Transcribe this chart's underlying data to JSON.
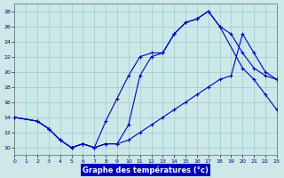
{
  "title": "Graphe des températures (°c)",
  "bg_color": "#cce8e8",
  "grid_color": "#99cccc",
  "line_color": "#0000bb",
  "xlim": [
    0,
    23
  ],
  "ylim": [
    9,
    29
  ],
  "yticks": [
    10,
    12,
    14,
    16,
    18,
    20,
    22,
    24,
    26,
    28
  ],
  "xticks": [
    0,
    1,
    2,
    3,
    4,
    5,
    6,
    7,
    8,
    9,
    10,
    11,
    12,
    13,
    14,
    15,
    16,
    17,
    18,
    19,
    20,
    21,
    22,
    23
  ],
  "curve1_x": [
    0,
    2,
    3,
    4,
    5,
    6,
    7,
    8,
    9,
    10,
    11,
    12,
    13,
    14,
    15,
    16,
    17,
    18,
    19,
    20,
    21,
    22,
    23
  ],
  "curve1_y": [
    14,
    13.5,
    12.5,
    11.0,
    10.0,
    10.5,
    10.0,
    10.5,
    10.5,
    13.0,
    19.5,
    22.0,
    22.5,
    25.0,
    26.5,
    27.0,
    28.0,
    26.0,
    25.0,
    22.5,
    20.5,
    19.5,
    19.0
  ],
  "curve2_x": [
    0,
    2,
    3,
    4,
    5,
    6,
    7,
    8,
    9,
    10,
    11,
    12,
    13,
    14,
    15,
    16,
    17,
    18,
    20,
    21,
    22,
    23
  ],
  "curve2_y": [
    14,
    13.5,
    12.5,
    11.0,
    10.0,
    10.5,
    10.0,
    13.5,
    16.5,
    19.5,
    22.0,
    22.5,
    22.5,
    25.0,
    26.5,
    27.0,
    28.0,
    26.0,
    20.5,
    19.0,
    17.0,
    15.0
  ],
  "curve3_x": [
    0,
    2,
    3,
    4,
    5,
    6,
    7,
    8,
    9,
    10,
    11,
    12,
    13,
    14,
    15,
    16,
    17,
    18,
    19,
    20,
    21,
    22,
    23
  ],
  "curve3_y": [
    14,
    13.5,
    12.5,
    11.0,
    10.0,
    10.5,
    10.0,
    10.5,
    10.5,
    11.0,
    12.0,
    13.0,
    14.0,
    15.0,
    16.0,
    17.0,
    18.0,
    19.0,
    19.5,
    25.0,
    22.5,
    20.0,
    19.0
  ]
}
